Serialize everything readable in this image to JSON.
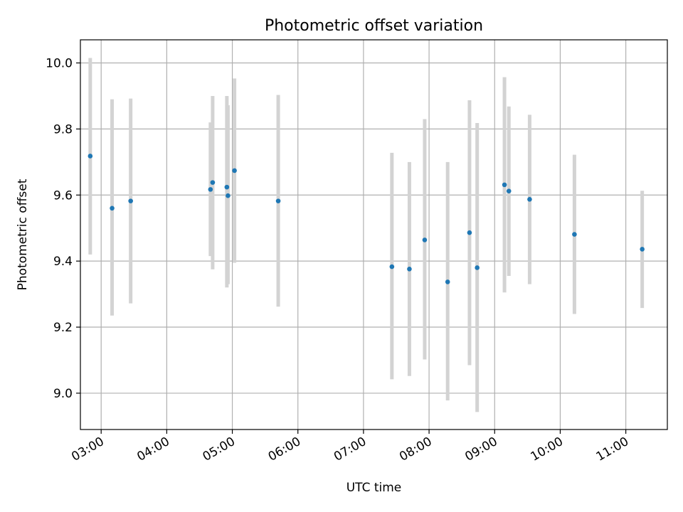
{
  "chart_data": {
    "type": "scatter",
    "title": "Photometric offset variation",
    "xlabel": "UTC time",
    "ylabel": "Photometric offset",
    "xlim": [
      "02:41",
      "11:38"
    ],
    "ylim": [
      8.89,
      10.07
    ],
    "grid": true,
    "x_ticks": [
      "03:00",
      "04:00",
      "05:00",
      "06:00",
      "07:00",
      "08:00",
      "09:00",
      "10:00",
      "11:00"
    ],
    "y_ticks": [
      "9.0",
      "9.2",
      "9.4",
      "9.6",
      "9.8",
      "10.0"
    ],
    "colors": {
      "point": "#1f77b4",
      "errorbar": "#d3d3d3",
      "grid": "#b0b0b0"
    },
    "points": [
      {
        "x": "02:50",
        "y": 9.718,
        "ylo": 9.42,
        "yhi": 10.015
      },
      {
        "x": "03:10",
        "y": 9.56,
        "ylo": 9.235,
        "yhi": 9.89
      },
      {
        "x": "03:27",
        "y": 9.582,
        "ylo": 9.272,
        "yhi": 9.892
      },
      {
        "x": "04:40",
        "y": 9.617,
        "ylo": 9.415,
        "yhi": 9.82
      },
      {
        "x": "04:42",
        "y": 9.638,
        "ylo": 9.375,
        "yhi": 9.9
      },
      {
        "x": "04:55",
        "y": 9.624,
        "ylo": 9.32,
        "yhi": 9.9
      },
      {
        "x": "04:56",
        "y": 9.598,
        "ylo": 9.33,
        "yhi": 9.872
      },
      {
        "x": "05:02",
        "y": 9.674,
        "ylo": 9.395,
        "yhi": 9.953
      },
      {
        "x": "05:42",
        "y": 9.582,
        "ylo": 9.262,
        "yhi": 9.903
      },
      {
        "x": "07:26",
        "y": 9.383,
        "ylo": 9.042,
        "yhi": 9.728
      },
      {
        "x": "07:42",
        "y": 9.376,
        "ylo": 9.052,
        "yhi": 9.7
      },
      {
        "x": "07:56",
        "y": 9.464,
        "ylo": 9.102,
        "yhi": 9.83
      },
      {
        "x": "08:17",
        "y": 9.337,
        "ylo": 8.978,
        "yhi": 9.7
      },
      {
        "x": "08:37",
        "y": 9.486,
        "ylo": 9.085,
        "yhi": 9.887
      },
      {
        "x": "08:44",
        "y": 9.38,
        "ylo": 8.943,
        "yhi": 9.818
      },
      {
        "x": "09:09",
        "y": 9.631,
        "ylo": 9.305,
        "yhi": 9.957
      },
      {
        "x": "09:13",
        "y": 9.612,
        "ylo": 9.355,
        "yhi": 9.868
      },
      {
        "x": "09:32",
        "y": 9.587,
        "ylo": 9.33,
        "yhi": 9.843
      },
      {
        "x": "10:13",
        "y": 9.481,
        "ylo": 9.24,
        "yhi": 9.722
      },
      {
        "x": "11:15",
        "y": 9.436,
        "ylo": 9.258,
        "yhi": 9.613
      }
    ]
  }
}
